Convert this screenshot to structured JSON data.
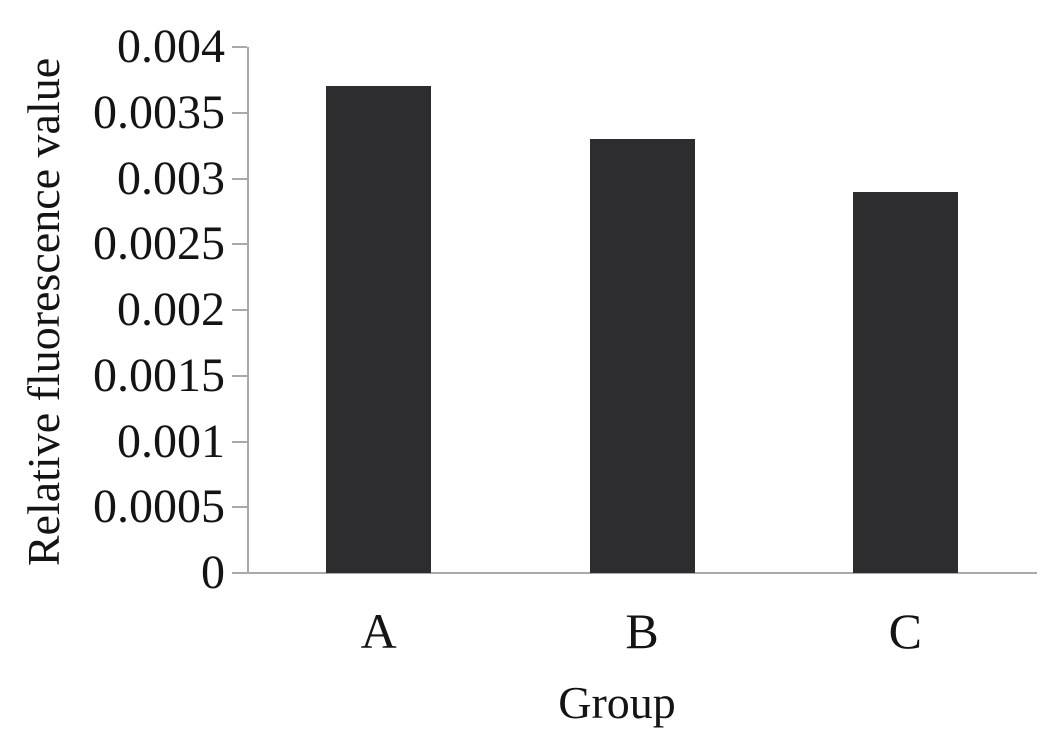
{
  "chart_data": {
    "type": "bar",
    "title": "",
    "categories": [
      "A",
      "B",
      "C"
    ],
    "values": [
      0.0037,
      0.0033,
      0.0029
    ],
    "xlabel": "Group",
    "ylabel": "Relative fluorescence value",
    "ylim": [
      0,
      0.004
    ],
    "ytick_interval": 0.0005,
    "ytick_labels": [
      "0.004",
      "0.0035",
      "0.003",
      "0.0025",
      "0.002",
      "0.0015",
      "0.001",
      "0.0005",
      "0"
    ],
    "grid": false,
    "legend_position": "none",
    "bar_color": "#2d2d2f",
    "axis_color": "#a9a9a9",
    "text_color": "#141414",
    "background": "#ffffff"
  }
}
